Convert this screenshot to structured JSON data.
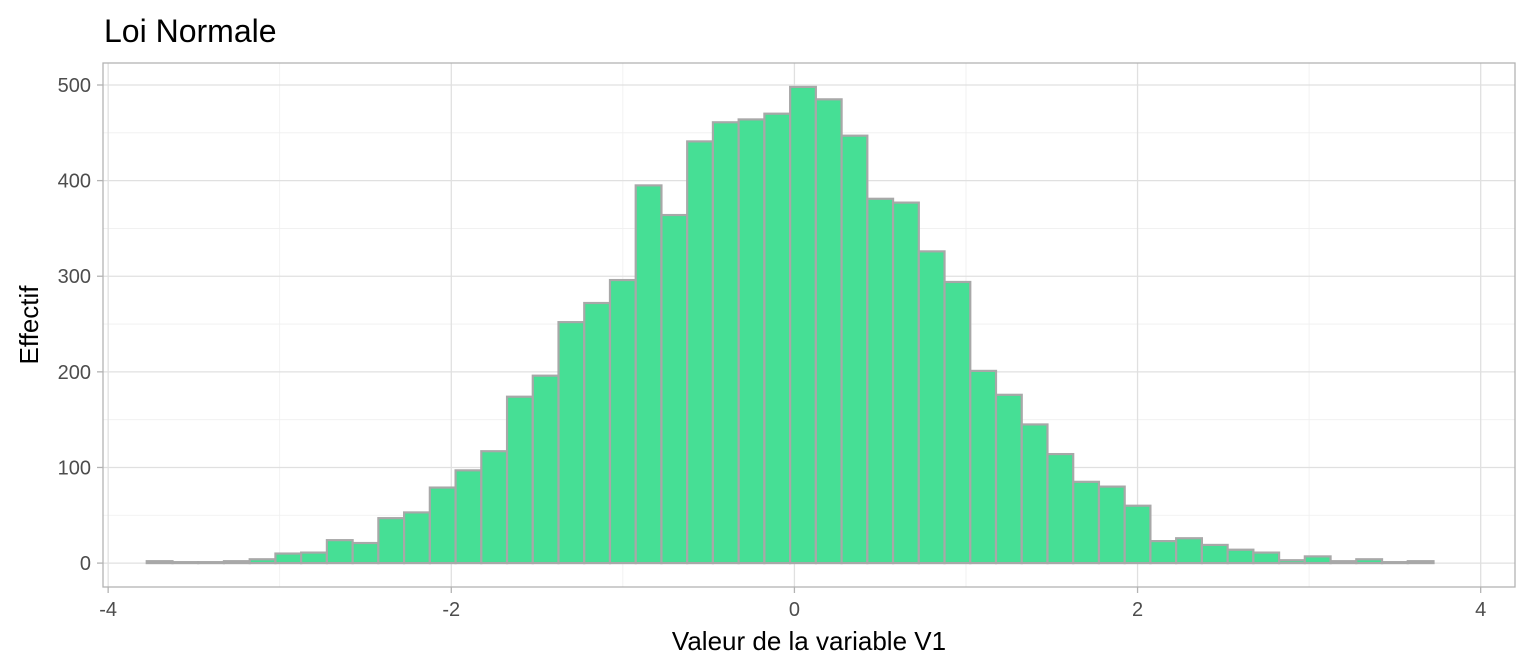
{
  "chart_data": {
    "type": "bar",
    "title": "Loi Normale",
    "xlabel": "Valeur de la variable V1",
    "ylabel": "Effectif",
    "xlim": [
      -4.03,
      4.2
    ],
    "ylim": [
      -25,
      523
    ],
    "x_ticks": [
      -4,
      -2,
      0,
      2,
      4
    ],
    "x_tick_labels": [
      "-4",
      "-2",
      "0",
      "2",
      "4"
    ],
    "y_ticks": [
      0,
      100,
      200,
      300,
      400,
      500
    ],
    "y_tick_labels": [
      "0",
      "100",
      "200",
      "300",
      "400",
      "500"
    ],
    "grid": true,
    "bar_fill": "#46df95",
    "bar_outline": "#a8a8a8",
    "bin_width": 0.15,
    "bins": [
      {
        "x": -3.7,
        "count": 2
      },
      {
        "x": -3.55,
        "count": 1
      },
      {
        "x": -3.4,
        "count": 1
      },
      {
        "x": -3.25,
        "count": 2
      },
      {
        "x": -3.1,
        "count": 4
      },
      {
        "x": -2.95,
        "count": 10
      },
      {
        "x": -2.8,
        "count": 11
      },
      {
        "x": -2.65,
        "count": 24
      },
      {
        "x": -2.5,
        "count": 21
      },
      {
        "x": -2.35,
        "count": 47
      },
      {
        "x": -2.2,
        "count": 53
      },
      {
        "x": -2.05,
        "count": 79
      },
      {
        "x": -1.9,
        "count": 97
      },
      {
        "x": -1.75,
        "count": 117
      },
      {
        "x": -1.6,
        "count": 174
      },
      {
        "x": -1.45,
        "count": 196
      },
      {
        "x": -1.3,
        "count": 252
      },
      {
        "x": -1.15,
        "count": 272
      },
      {
        "x": -1.0,
        "count": 296
      },
      {
        "x": -0.85,
        "count": 395
      },
      {
        "x": -0.7,
        "count": 364
      },
      {
        "x": -0.55,
        "count": 441
      },
      {
        "x": -0.4,
        "count": 461
      },
      {
        "x": -0.25,
        "count": 464
      },
      {
        "x": -0.1,
        "count": 470
      },
      {
        "x": 0.05,
        "count": 498
      },
      {
        "x": 0.2,
        "count": 485
      },
      {
        "x": 0.35,
        "count": 447
      },
      {
        "x": 0.5,
        "count": 381
      },
      {
        "x": 0.65,
        "count": 377
      },
      {
        "x": 0.8,
        "count": 326
      },
      {
        "x": 0.95,
        "count": 294
      },
      {
        "x": 1.1,
        "count": 201
      },
      {
        "x": 1.25,
        "count": 176
      },
      {
        "x": 1.4,
        "count": 145
      },
      {
        "x": 1.55,
        "count": 114
      },
      {
        "x": 1.7,
        "count": 85
      },
      {
        "x": 1.85,
        "count": 80
      },
      {
        "x": 2.0,
        "count": 60
      },
      {
        "x": 2.15,
        "count": 23
      },
      {
        "x": 2.3,
        "count": 26
      },
      {
        "x": 2.45,
        "count": 19
      },
      {
        "x": 2.6,
        "count": 14
      },
      {
        "x": 2.75,
        "count": 11
      },
      {
        "x": 2.9,
        "count": 3
      },
      {
        "x": 3.05,
        "count": 7
      },
      {
        "x": 3.2,
        "count": 2
      },
      {
        "x": 3.35,
        "count": 4
      },
      {
        "x": 3.5,
        "count": 1
      },
      {
        "x": 3.65,
        "count": 2
      }
    ]
  }
}
